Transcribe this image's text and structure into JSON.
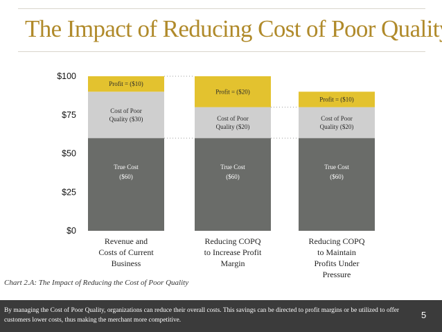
{
  "slide": {
    "title": "The Impact of Reducing Cost of Poor Quality",
    "caption": "Chart 2.A: The Impact of Reducing the Cost of Poor Quality",
    "footer_text": "By managing the Cost of Poor Quality, organizations can reduce their overall costs.  This savings can be directed to profit margins or be utilized to offer customers lower costs, thus making the merchant more competitive.",
    "page_number": "5"
  },
  "colors": {
    "title": "#b08a2a",
    "true_cost": "#6a6c69",
    "copq": "#cfcfcf",
    "profit": "#e3c22f",
    "footer_bg": "#3b3b3b"
  },
  "chart_data": {
    "type": "bar",
    "stacked": true,
    "ylim": [
      0,
      100
    ],
    "yticks": [
      "$0",
      "$25",
      "$50",
      "$75",
      "$100"
    ],
    "categories": [
      [
        "Revenue and",
        "Costs of Current",
        "Business"
      ],
      [
        "Reducing COPQ",
        "to Increase Profit",
        "Margin"
      ],
      [
        "Reducing COPQ",
        "to Maintain",
        "Profits Under",
        "Pressure"
      ]
    ],
    "series": [
      {
        "name": "True Cost",
        "values": [
          60,
          60,
          60
        ],
        "labels": [
          [
            "True Cost",
            "($60)"
          ],
          [
            "True Cost",
            "($60)"
          ],
          [
            "True Cost",
            "($60)"
          ]
        ]
      },
      {
        "name": "Cost of Poor Quality",
        "values": [
          30,
          20,
          20
        ],
        "labels": [
          [
            "Cost of Poor",
            "Quality ($30)"
          ],
          [
            "Cost of Poor",
            "Quality ($20)"
          ],
          [
            "Cost of Poor",
            "Quality ($20)"
          ]
        ]
      },
      {
        "name": "Profit",
        "values": [
          10,
          20,
          10
        ],
        "labels": [
          [
            "Profit = ($10)"
          ],
          [
            "Profit = ($20)"
          ],
          [
            "Profit = ($10)"
          ]
        ]
      }
    ]
  }
}
